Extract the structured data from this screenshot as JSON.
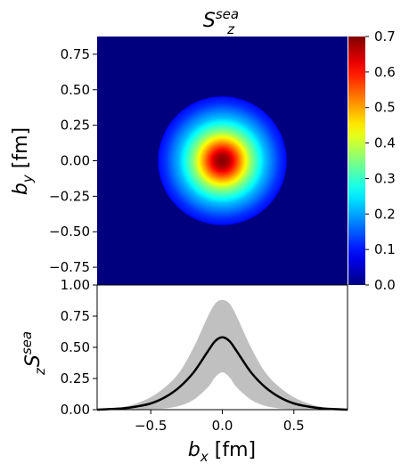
{
  "chart_data": [
    {
      "type": "heatmap",
      "title": {
        "base": "S",
        "sub": "z",
        "sup": "sea"
      },
      "xlim": [
        -0.875,
        0.875
      ],
      "ylim": [
        -0.875,
        0.875
      ],
      "ylabel": {
        "base": "b",
        "sub": "y",
        "unit": " [fm]"
      },
      "yticks": [
        0.75,
        0.5,
        0.25,
        0.0,
        -0.25,
        -0.5,
        -0.75
      ],
      "ytick_labels": [
        "0.75",
        "0.50",
        "0.25",
        "0.00",
        "−0.25",
        "−0.50",
        "−0.75"
      ],
      "colormap": "jet",
      "background_color": "#00007f",
      "peak": {
        "x": 0.0,
        "y": 0.0,
        "value": 0.7
      },
      "colorbar": {
        "range": [
          0.0,
          0.7
        ],
        "ticks": [
          0.0,
          0.1,
          0.2,
          0.3,
          0.4,
          0.5,
          0.6,
          0.7
        ],
        "tick_labels": [
          "0.0",
          "0.1",
          "0.2",
          "0.3",
          "0.4",
          "0.5",
          "0.6",
          "0.7"
        ]
      }
    },
    {
      "type": "line",
      "xlabel": {
        "base": "b",
        "sub": "x",
        "unit": " [fm]"
      },
      "ylabel": {
        "base": "S",
        "sub": "z",
        "sup": "sea"
      },
      "xlim": [
        -0.875,
        0.875
      ],
      "ylim": [
        0.0,
        1.0
      ],
      "xticks": [
        -0.5,
        0.0,
        0.5
      ],
      "xtick_labels": [
        "−0.5",
        "0.0",
        "0.5"
      ],
      "yticks": [
        0.0,
        0.25,
        0.5,
        0.75,
        1.0
      ],
      "ytick_labels": [
        "0.00",
        "0.25",
        "0.50",
        "0.75",
        "1.00"
      ],
      "series": [
        {
          "role": "central",
          "color": "#000000",
          "x": [
            -0.875,
            -0.7,
            -0.6,
            -0.5,
            -0.4,
            -0.3,
            -0.2,
            -0.1,
            -0.05,
            0.0,
            0.05,
            0.1,
            0.2,
            0.3,
            0.4,
            0.5,
            0.6,
            0.7,
            0.875
          ],
          "y": [
            0.0,
            0.01,
            0.025,
            0.05,
            0.1,
            0.18,
            0.3,
            0.47,
            0.55,
            0.58,
            0.55,
            0.47,
            0.3,
            0.18,
            0.1,
            0.05,
            0.025,
            0.01,
            0.0
          ]
        },
        {
          "role": "uncertainty-band",
          "color": "#c0c0c0",
          "x": [
            -0.875,
            -0.7,
            -0.6,
            -0.5,
            -0.4,
            -0.3,
            -0.2,
            -0.1,
            -0.05,
            0.0,
            0.05,
            0.1,
            0.2,
            0.3,
            0.4,
            0.5,
            0.6,
            0.7,
            0.875
          ],
          "upper": [
            0.0,
            0.02,
            0.05,
            0.1,
            0.18,
            0.3,
            0.5,
            0.75,
            0.85,
            0.88,
            0.85,
            0.75,
            0.5,
            0.3,
            0.18,
            0.1,
            0.05,
            0.02,
            0.0
          ],
          "lower": [
            0.0,
            0.0,
            0.0,
            0.005,
            0.01,
            0.03,
            0.08,
            0.18,
            0.26,
            0.3,
            0.26,
            0.18,
            0.08,
            0.03,
            0.01,
            0.005,
            0.0,
            0.0,
            0.0
          ]
        }
      ]
    }
  ]
}
